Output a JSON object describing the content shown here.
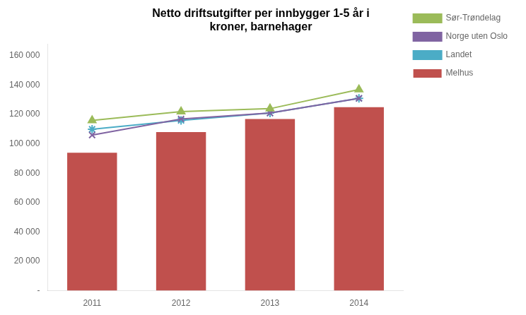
{
  "chart_data": {
    "type": "bar",
    "title": "Netto driftsutgifter per innbygger 1-5 år i\nkroner, barnehager",
    "categories": [
      "2011",
      "2012",
      "2013",
      "2014"
    ],
    "series": [
      {
        "name": "Melhus",
        "type": "bar",
        "color": "#C0504D",
        "values": [
          94000,
          108000,
          117000,
          125000
        ]
      },
      {
        "name": "Sør-Trøndelag",
        "type": "line",
        "color": "#9BBB59",
        "marker": "triangle",
        "line_style": "solid",
        "values": [
          116000,
          122000,
          124000,
          137000
        ]
      },
      {
        "name": "Norge uten Oslo",
        "type": "line",
        "color": "#8064A2",
        "marker": "x",
        "line_style": "solid",
        "values": [
          106000,
          117000,
          121000,
          131000
        ]
      },
      {
        "name": "Landet",
        "type": "line",
        "color": "#4BACC6",
        "marker": "star",
        "line_style": "solid",
        "values": [
          110000,
          116000,
          121000,
          131000
        ]
      }
    ],
    "ylim": [
      0,
      168000
    ],
    "yticks": [
      {
        "value": 0,
        "label": "-"
      },
      {
        "value": 20000,
        "label": "20 000"
      },
      {
        "value": 40000,
        "label": "40 000"
      },
      {
        "value": 60000,
        "label": "60 000"
      },
      {
        "value": 80000,
        "label": "80 000"
      },
      {
        "value": 100000,
        "label": "100 000"
      },
      {
        "value": 120000,
        "label": "120 000"
      },
      {
        "value": 140000,
        "label": "140 000"
      },
      {
        "value": 160000,
        "label": "160 000"
      }
    ],
    "grid": false,
    "legend": "right"
  }
}
